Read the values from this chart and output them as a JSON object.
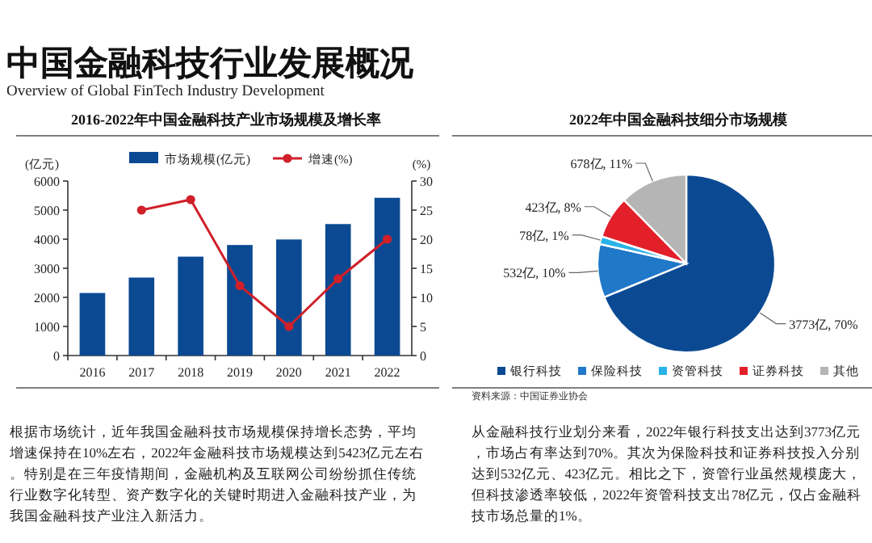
{
  "chart_data": [
    {
      "type": "bar",
      "title": "2016-2022年中国金融科技产业市场规模及增长率",
      "ylabel": "(亿元)",
      "y2label": "(%)",
      "annotations": [
        "中国金融科技行业发展概况",
        "Overview of Global FinTech Industry Development",
        "根据市场统计，近年我国金融科技市场规模保持增长态势，平均增速保持在10%左右，2022年金融科技市场规模达到5423亿元左右。特别是在三年疫情期间，金融机构及互联网公司纷纷抓住传统行业数字化转型、资产数字化的关键时期进入金融科技产业，为我国金融科技产业注入新活力。"
      ],
      "categories": [
        "2016",
        "2017",
        "2018",
        "2019",
        "2020",
        "2021",
        "2022"
      ],
      "series": [
        {
          "name": "市场规模(亿元)",
          "type": "bar",
          "color": "#0b4a93",
          "values": [
            2150,
            2680,
            3400,
            3800,
            3990,
            4520,
            5423
          ]
        },
        {
          "name": "增速(%)",
          "type": "line",
          "axis": "y2",
          "color": "#d0202a",
          "marker": "circle",
          "values": [
            null,
            25,
            26.8,
            12,
            5,
            13.2,
            20
          ]
        }
      ],
      "ylim": [
        0,
        6000
      ],
      "yticks": [
        0,
        1000,
        2000,
        3000,
        4000,
        5000,
        6000
      ],
      "y2lim": [
        0,
        30
      ],
      "y2ticks": [
        0,
        5,
        10,
        15,
        20,
        25,
        30
      ],
      "grid": false,
      "legend": "top"
    },
    {
      "type": "pie",
      "title": "2022年中国金融科技细分市场规模",
      "annotations": [
        "资料来源：中国证券业协会",
        "从金融科技行业划分来看，2022年银行科技支出达到3773亿元，市场占有率达到70%。其次为保险科技和证券科技投入分别达到532亿元、423亿元。相比之下，资管行业虽然规模庞大，但科技渗透率较低，2022年资管科技支出78亿元，仅占金融科技市场总量的1%。"
      ],
      "categories": [
        "银行科技",
        "保险科技",
        "资管科技",
        "证券科技",
        "其他"
      ],
      "values": [
        3773,
        532,
        78,
        423,
        678
      ],
      "colors": [
        "#0b4a93",
        "#1f78c8",
        "#29b3e6",
        "#e3202a",
        "#b5b5b5"
      ],
      "value_labels": [
        "3773亿, 70%",
        "532亿, 10%",
        "78亿, 1%",
        "423亿, 8%",
        "678亿, 11%"
      ],
      "legend": "bottom"
    }
  ]
}
